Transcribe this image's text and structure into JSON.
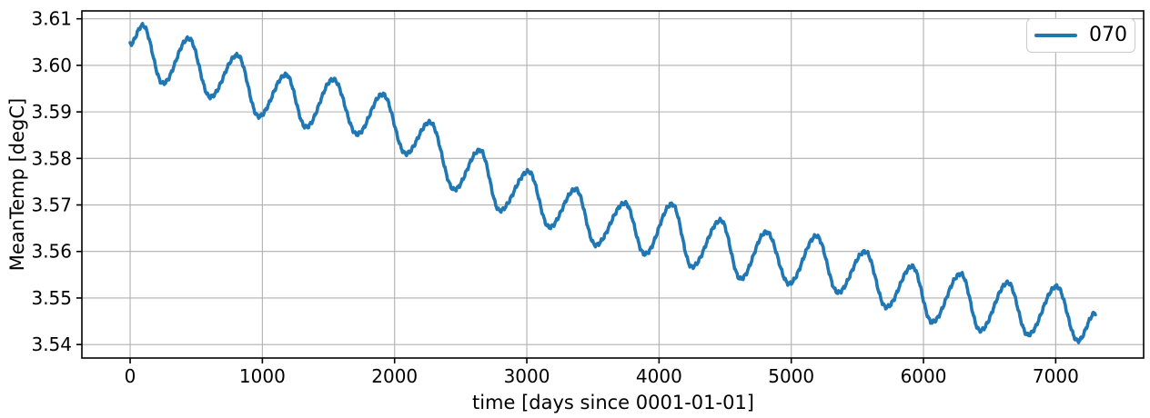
{
  "chart_data": {
    "type": "line",
    "title": "",
    "xlabel": "time [days since 0001-01-01]",
    "ylabel": "MeanTemp [degC]",
    "xlim": [
      -365,
      7665
    ],
    "ylim": [
      3.5371,
      3.6117
    ],
    "grid": true,
    "grid_color": "#b0b0b0",
    "axis_color": "#000000",
    "background_color": "#ffffff",
    "xticks": {
      "values": [
        0,
        1000,
        2000,
        3000,
        4000,
        5000,
        6000,
        7000
      ],
      "labels": [
        "0",
        "1000",
        "2000",
        "3000",
        "4000",
        "5000",
        "6000",
        "7000"
      ]
    },
    "yticks": {
      "values": [
        3.54,
        3.55,
        3.56,
        3.57,
        3.58,
        3.59,
        3.6,
        3.61
      ],
      "labels": [
        "3.54",
        "3.55",
        "3.56",
        "3.57",
        "3.58",
        "3.59",
        "3.60",
        "3.61"
      ]
    },
    "legend": {
      "position": "upper right",
      "entries": [
        {
          "label": "070",
          "color": "#1f77b4"
        }
      ]
    },
    "series": [
      {
        "name": "070",
        "color": "#1f77b4",
        "line_width": 3.6,
        "interpolation": "cosine-between-extrema",
        "points": [
          [
            0,
            3.6045
          ],
          [
            94,
            3.6086
          ],
          [
            248,
            3.5961
          ],
          [
            443,
            3.6058
          ],
          [
            605,
            3.5932
          ],
          [
            811,
            3.6022
          ],
          [
            972,
            3.589
          ],
          [
            1179,
            3.598
          ],
          [
            1329,
            3.5867
          ],
          [
            1536,
            3.597
          ],
          [
            1717,
            3.5852
          ],
          [
            1910,
            3.5938
          ],
          [
            2085,
            3.581
          ],
          [
            2267,
            3.5878
          ],
          [
            2450,
            3.5733
          ],
          [
            2646,
            3.5818
          ],
          [
            2795,
            3.5688
          ],
          [
            3014,
            3.5772
          ],
          [
            3170,
            3.5652
          ],
          [
            3370,
            3.5734
          ],
          [
            3519,
            3.5614
          ],
          [
            3743,
            3.5704
          ],
          [
            3892,
            3.5594
          ],
          [
            4099,
            3.5702
          ],
          [
            4248,
            3.5567
          ],
          [
            4467,
            3.5667
          ],
          [
            4616,
            3.5541
          ],
          [
            4812,
            3.5642
          ],
          [
            4984,
            3.5531
          ],
          [
            5191,
            3.5633
          ],
          [
            5352,
            3.5512
          ],
          [
            5559,
            3.56
          ],
          [
            5719,
            3.548
          ],
          [
            5915,
            3.5568
          ],
          [
            6064,
            3.5448
          ],
          [
            6283,
            3.5552
          ],
          [
            6428,
            3.543
          ],
          [
            6639,
            3.5533
          ],
          [
            6790,
            3.5421
          ],
          [
            7007,
            3.5525
          ],
          [
            7168,
            3.5408
          ],
          [
            7300,
            3.5468
          ]
        ],
        "noise": {
          "amplitudes": [
            0.0003,
            0.00016
          ],
          "periods": [
            31,
            13
          ],
          "phases": [
            2.0,
            0.7
          ]
        }
      }
    ]
  }
}
